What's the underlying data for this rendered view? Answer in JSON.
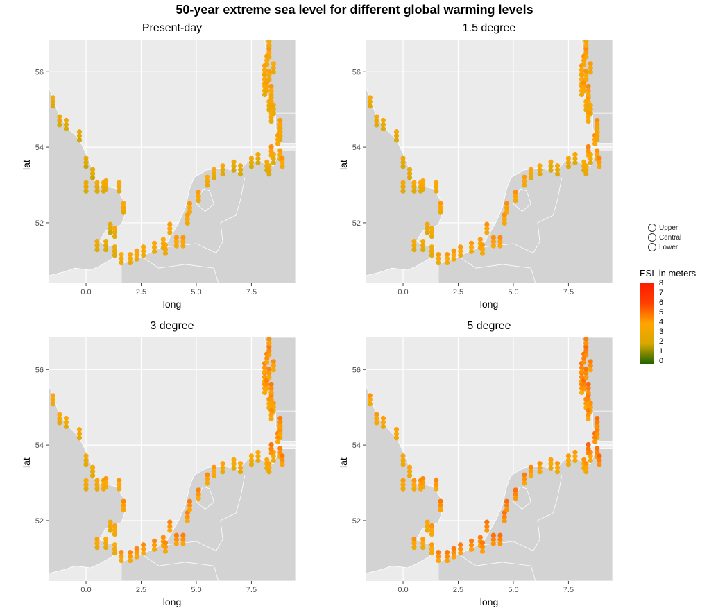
{
  "title": "50-year extreme sea level for different global warming levels",
  "colors": {
    "sea": "#ebebeb",
    "land": "#d3d3d3",
    "border": "#ffffff",
    "grid": "#ffffff"
  },
  "legend": {
    "shape_items": [
      "Upper",
      "Central",
      "Lower"
    ],
    "colorbar_title": "ESL in meters",
    "colorbar_ticks": [
      "8",
      "7",
      "6",
      "5",
      "4",
      "3",
      "2",
      "1",
      "0"
    ],
    "colorbar_stops": [
      "#1e6400",
      "#d8a800",
      "#ffa500",
      "#ff4000",
      "#ff1a00"
    ]
  },
  "chart_data": [
    {
      "type": "scatter",
      "title": "Present-day",
      "xlabel": "long",
      "ylabel": "lat",
      "xlim": [
        -1.7,
        9.5
      ],
      "ylim": [
        50.4,
        56.85
      ],
      "xticks": [
        "0.0",
        "2.5",
        "5.0",
        "7.5"
      ],
      "yticks": [
        "52",
        "54",
        "56"
      ],
      "values": [
        2.9,
        2.8,
        2.7,
        2.6,
        2.5,
        2.5,
        2.7,
        2.9,
        3.1,
        3.2,
        3.3,
        3.3,
        3.5,
        3.0,
        2.7,
        2.5,
        3.0,
        2.8,
        3.5,
        3.6,
        3.6,
        3.6,
        3.6,
        3.5,
        3.6,
        3.8,
        3.9,
        3.9,
        3.8,
        3.9,
        3.8,
        3.5,
        3.3,
        3.0,
        2.6,
        2.8,
        2.8,
        2.8,
        2.9,
        3.0,
        3.0,
        3.0,
        3.0,
        3.1,
        3.3,
        3.4,
        3.5,
        3.6,
        3.7,
        3.8,
        3.9,
        4.0,
        3.9,
        3.8,
        3.7,
        3.5,
        4.0,
        3.9,
        3.8,
        3.9,
        3.8,
        4.0,
        4.2
      ]
    },
    {
      "type": "scatter",
      "title": "1.5 degree",
      "xlabel": "long",
      "ylabel": "lat",
      "xlim": [
        -1.7,
        9.5
      ],
      "ylim": [
        50.4,
        56.85
      ],
      "xticks": [
        "0.0",
        "2.5",
        "5.0",
        "7.5"
      ],
      "yticks": [
        "52",
        "54",
        "56"
      ],
      "values": [
        3.2,
        3.1,
        3.0,
        2.9,
        2.8,
        2.8,
        3.0,
        3.2,
        3.4,
        3.5,
        3.6,
        3.6,
        3.8,
        3.3,
        3.0,
        2.8,
        3.3,
        3.1,
        3.8,
        3.9,
        3.9,
        3.9,
        3.9,
        3.8,
        3.9,
        4.1,
        4.2,
        4.2,
        4.1,
        4.2,
        4.1,
        3.8,
        3.6,
        3.3,
        2.9,
        3.1,
        3.1,
        3.1,
        3.2,
        3.3,
        3.3,
        3.3,
        3.3,
        3.4,
        3.6,
        3.7,
        3.8,
        3.9,
        4.0,
        4.1,
        4.2,
        4.3,
        4.2,
        4.1,
        4.0,
        3.8,
        4.3,
        4.2,
        4.1,
        4.2,
        4.1,
        4.3,
        4.5
      ]
    },
    {
      "type": "scatter",
      "title": "3 degree",
      "xlabel": "long",
      "ylabel": "lat",
      "xlim": [
        -1.7,
        9.5
      ],
      "ylim": [
        50.4,
        56.85
      ],
      "xticks": [
        "0.0",
        "2.5",
        "5.0",
        "7.5"
      ],
      "yticks": [
        "52",
        "54",
        "56"
      ],
      "values": [
        3.6,
        3.5,
        3.4,
        3.3,
        3.2,
        3.2,
        3.4,
        3.6,
        3.8,
        3.9,
        4.0,
        4.0,
        4.2,
        3.7,
        3.4,
        3.2,
        3.7,
        3.5,
        4.2,
        4.3,
        4.3,
        4.3,
        4.3,
        4.2,
        4.3,
        4.5,
        4.6,
        4.6,
        4.5,
        4.6,
        4.5,
        4.2,
        4.0,
        3.7,
        3.3,
        3.5,
        3.5,
        3.5,
        3.6,
        3.7,
        3.7,
        3.7,
        3.7,
        3.8,
        4.0,
        4.1,
        4.2,
        4.3,
        4.4,
        4.5,
        4.6,
        4.7,
        4.6,
        4.5,
        4.4,
        4.2,
        4.7,
        4.6,
        4.5,
        4.6,
        4.5,
        4.7,
        4.9
      ]
    },
    {
      "type": "scatter",
      "title": "5 degree",
      "xlabel": "long",
      "ylabel": "lat",
      "xlim": [
        -1.7,
        9.5
      ],
      "ylim": [
        50.4,
        56.85
      ],
      "xticks": [
        "0.0",
        "2.5",
        "5.0",
        "7.5"
      ],
      "yticks": [
        "52",
        "54",
        "56"
      ],
      "values": [
        4.0,
        3.9,
        3.8,
        3.7,
        3.6,
        3.6,
        3.8,
        4.0,
        4.2,
        4.3,
        4.4,
        4.4,
        4.6,
        4.1,
        3.8,
        3.6,
        4.1,
        3.9,
        4.6,
        4.7,
        4.7,
        4.7,
        4.7,
        4.6,
        4.7,
        4.9,
        5.0,
        5.0,
        4.9,
        5.0,
        4.9,
        4.6,
        4.4,
        4.1,
        3.7,
        3.9,
        3.9,
        3.9,
        4.0,
        4.1,
        4.1,
        4.1,
        4.1,
        4.2,
        4.4,
        4.5,
        4.6,
        4.7,
        4.8,
        4.9,
        5.0,
        5.1,
        5.0,
        4.9,
        4.8,
        4.6,
        5.1,
        5.0,
        4.9,
        5.0,
        4.9,
        5.1,
        5.3
      ]
    }
  ],
  "station_coords": {
    "long": [
      -1.5,
      -1.2,
      -0.9,
      -0.3,
      0.0,
      0.3,
      0.0,
      0.5,
      0.8,
      0.9,
      1.5,
      1.7,
      1.7,
      0.5,
      0.9,
      1.1,
      1.3,
      1.3,
      1.6,
      2.0,
      2.3,
      2.6,
      3.1,
      3.5,
      3.6,
      3.8,
      4.1,
      4.4,
      4.6,
      4.7,
      5.1,
      5.5,
      5.8,
      6.2,
      6.7,
      7.0,
      7.5,
      7.8,
      8.2,
      8.3,
      8.5,
      8.8,
      8.8,
      8.5,
      8.3,
      8.1,
      8.4,
      8.4,
      8.1,
      8.1,
      8.2,
      8.3,
      8.3,
      8.2,
      8.3,
      8.5,
      8.4,
      8.7,
      8.8,
      8.8,
      8.8,
      8.9,
      8.4
    ],
    "lat": [
      55.2,
      54.7,
      54.6,
      54.3,
      53.6,
      53.3,
      52.95,
      52.95,
      52.95,
      53.0,
      52.95,
      52.4,
      52.4,
      51.4,
      51.4,
      51.85,
      51.75,
      51.25,
      51.05,
      51.05,
      51.15,
      51.25,
      51.35,
      51.45,
      51.3,
      51.85,
      51.5,
      51.5,
      52.1,
      52.4,
      52.7,
      53.1,
      53.3,
      53.4,
      53.5,
      53.4,
      53.6,
      53.7,
      53.5,
      53.4,
      53.7,
      54.3,
      54.5,
      55.0,
      55.1,
      55.5,
      54.8,
      55.2,
      55.8,
      56.05,
      56.3,
      56.5,
      56.8,
      55.6,
      55.9,
      56.1,
      55.5,
      54.2,
      54.4,
      54.6,
      53.8,
      53.6,
      53.9
    ]
  }
}
